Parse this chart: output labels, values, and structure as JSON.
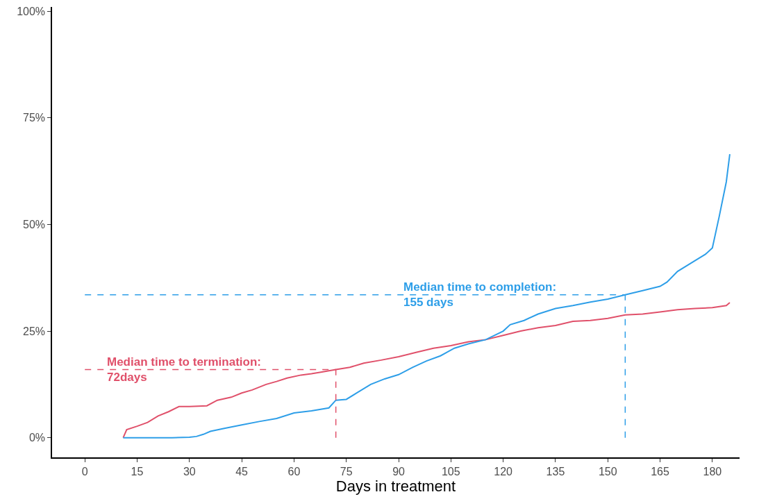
{
  "chart_data": {
    "type": "line",
    "xlabel": "Days in treatment",
    "xlim": [
      -9.4,
      187.8
    ],
    "ylim": [
      -4.6,
      101
    ],
    "xticks": [
      0,
      15,
      30,
      45,
      60,
      75,
      90,
      105,
      120,
      135,
      150,
      165,
      180
    ],
    "yticks": [
      {
        "value": 0,
        "label": "0%"
      },
      {
        "value": 25,
        "label": "25%"
      },
      {
        "value": 50,
        "label": "50%"
      },
      {
        "value": 75,
        "label": "75%"
      },
      {
        "value": 100,
        "label": "100%"
      }
    ],
    "grid": false,
    "line_style": "solid",
    "marker": "none",
    "series": [
      {
        "color": "#e0506a",
        "x": [
          11,
          12,
          15,
          18,
          21,
          24,
          27,
          30,
          35,
          38,
          42,
          45,
          48,
          52,
          55,
          58,
          62,
          65,
          68,
          72,
          76,
          80,
          85,
          90,
          95,
          100,
          105,
          110,
          115,
          120,
          125,
          130,
          135,
          140,
          145,
          150,
          155,
          160,
          165,
          170,
          175,
          180,
          184,
          185
        ],
        "values": [
          0,
          1.9,
          2.7,
          3.6,
          5.1,
          6.1,
          7.3,
          7.3,
          7.5,
          8.8,
          9.5,
          10.5,
          11.2,
          12.5,
          13.2,
          14,
          14.7,
          15,
          15.4,
          16,
          16.5,
          17.5,
          18.2,
          19,
          20,
          21,
          21.6,
          22.5,
          23,
          24,
          25,
          25.8,
          26.3,
          27.3,
          27.5,
          28,
          28.8,
          29,
          29.5,
          30,
          30.3,
          30.5,
          31,
          31.7
        ]
      },
      {
        "color": "#2d9ee8",
        "x": [
          11,
          15,
          20,
          25,
          30,
          32,
          34,
          36,
          40,
          45,
          50,
          55,
          60,
          65,
          70,
          72,
          75,
          78,
          82,
          86,
          90,
          94,
          98,
          102,
          106,
          110,
          115,
          120,
          122,
          126,
          130,
          135,
          140,
          145,
          150,
          155,
          160,
          165,
          167,
          170,
          175,
          178,
          180,
          182,
          184,
          185
        ],
        "values": [
          0,
          0,
          0,
          0,
          0.1,
          0.3,
          0.8,
          1.5,
          2.2,
          3,
          3.8,
          4.5,
          5.8,
          6.3,
          7,
          8.8,
          9,
          10.5,
          12.5,
          13.8,
          14.8,
          16.5,
          18,
          19.2,
          21,
          22,
          23,
          25,
          26.5,
          27.5,
          29,
          30.3,
          31,
          31.8,
          32.5,
          33.5,
          34.5,
          35.5,
          36.5,
          39,
          41.5,
          43,
          44.5,
          52,
          60,
          66.5
        ]
      }
    ],
    "ref_lines": [
      {
        "axis": "y",
        "value": 16,
        "color": "#e0506a",
        "line_style": "dashed"
      },
      {
        "axis": "x",
        "value": 72,
        "color": "#e0506a",
        "line_style": "dashed"
      },
      {
        "axis": "y",
        "value": 33.5,
        "color": "#2d9ee8",
        "line_style": "dashed"
      },
      {
        "axis": "x",
        "value": 155,
        "color": "#2d9ee8",
        "line_style": "dashed"
      }
    ],
    "annotations": [
      {
        "text": "Median time to termination:\n72days",
        "x": 6,
        "y": 16
      },
      {
        "text": "Median time to completion:\n155 days",
        "x": 91,
        "y": 33.5
      }
    ]
  }
}
